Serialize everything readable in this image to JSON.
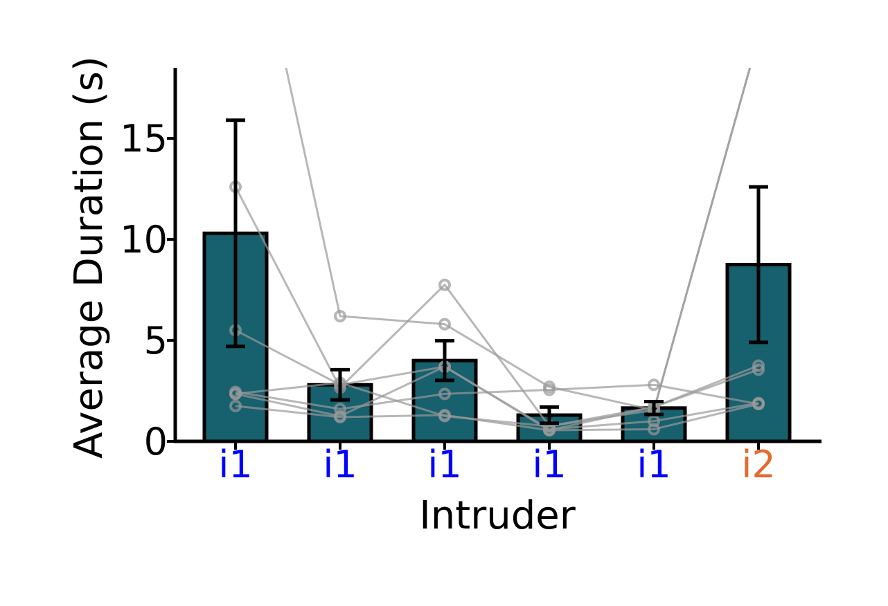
{
  "chart_data": {
    "type": "bar",
    "title": "",
    "xlabel": "Intruder",
    "ylabel": "Average Duration (s)",
    "ylim": [
      0,
      18
    ],
    "yticks": [
      0,
      5,
      10,
      15
    ],
    "grid": false,
    "categories": [
      "i1",
      "i1",
      "i1",
      "i1",
      "i1",
      "i2"
    ],
    "category_colors": [
      "#0000ff",
      "#0000ff",
      "#0000ff",
      "#0000ff",
      "#0000ff",
      "#e36a2d"
    ],
    "bar_color": "#17606d",
    "bar_edge_color": "#000000",
    "individual_color": "#999999",
    "values": [
      10.3,
      2.8,
      4.0,
      1.3,
      1.65,
      8.75
    ],
    "error": [
      5.6,
      0.75,
      0.98,
      0.4,
      0.32,
      3.85
    ],
    "individuals": [
      [
        12.6,
        2.65,
        7.75,
        0.75,
        1.7,
        3.55
      ],
      [
        5.5,
        2.8,
        3.7,
        0.55,
        1.7,
        3.75
      ],
      [
        2.45,
        1.6,
        2.35,
        2.55,
        2.8,
        1.85
      ],
      [
        2.35,
        1.25,
        3.7,
        0.6,
        1.0,
        1.9
      ],
      [
        1.75,
        1.2,
        1.3,
        0.55,
        0.6,
        1.85
      ],
      [
        2.35,
        2.9,
        1.25,
        0.75,
        1.55,
        20.0
      ],
      [
        30.0,
        6.2,
        5.8,
        2.7,
        1.55,
        20.0
      ]
    ]
  }
}
